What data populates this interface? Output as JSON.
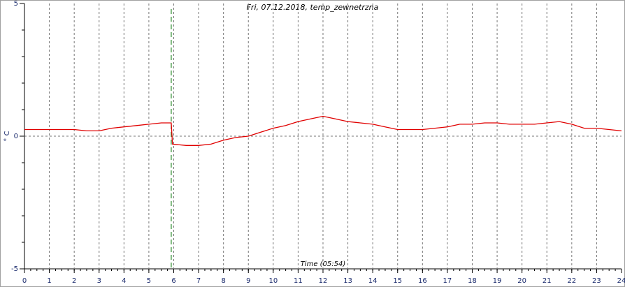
{
  "chart_data": {
    "type": "line",
    "title": "Fri, 07.12.2018, temp_zewnetrzna",
    "x_label": "Time (05:54)",
    "y_label": "° C",
    "xlim": [
      0,
      24
    ],
    "xticks": [
      0,
      1,
      2,
      3,
      4,
      5,
      6,
      7,
      8,
      9,
      10,
      11,
      12,
      13,
      14,
      15,
      16,
      17,
      18,
      19,
      20,
      21,
      22,
      23,
      24
    ],
    "xminor_step": 0.25,
    "ylim": [
      -5,
      5
    ],
    "yticks": [
      -5,
      0,
      5
    ],
    "yminorticks": [
      -4,
      -3,
      -2,
      -1,
      1,
      2,
      3,
      4
    ],
    "grid": true,
    "marker_x": 5.9,
    "marker_color": "#2a8a2a",
    "series": [
      {
        "name": "temp_zewnetrzna",
        "color": "#e00000",
        "x": [
          0,
          0.5,
          1,
          1.5,
          2,
          2.5,
          3,
          3.5,
          4,
          4.5,
          5,
          5.5,
          5.9,
          5.95,
          6.5,
          7,
          7.5,
          8,
          8.5,
          9,
          9.5,
          10,
          10.5,
          11,
          11.5,
          12,
          12.5,
          13,
          13.5,
          14,
          14.5,
          15,
          15.5,
          16,
          16.5,
          17,
          17.5,
          18,
          18.5,
          19,
          19.5,
          20,
          20.5,
          21,
          21.5,
          22,
          22.5,
          23,
          23.5,
          24
        ],
        "values": [
          0.25,
          0.25,
          0.25,
          0.25,
          0.25,
          0.2,
          0.2,
          0.3,
          0.35,
          0.4,
          0.45,
          0.5,
          0.5,
          -0.3,
          -0.35,
          -0.35,
          -0.3,
          -0.15,
          -0.05,
          0.0,
          0.15,
          0.3,
          0.4,
          0.55,
          0.65,
          0.75,
          0.65,
          0.55,
          0.5,
          0.45,
          0.35,
          0.25,
          0.25,
          0.25,
          0.3,
          0.35,
          0.45,
          0.45,
          0.5,
          0.5,
          0.45,
          0.45,
          0.45,
          0.5,
          0.55,
          0.45,
          0.3,
          0.3,
          0.25,
          0.2
        ]
      }
    ]
  }
}
